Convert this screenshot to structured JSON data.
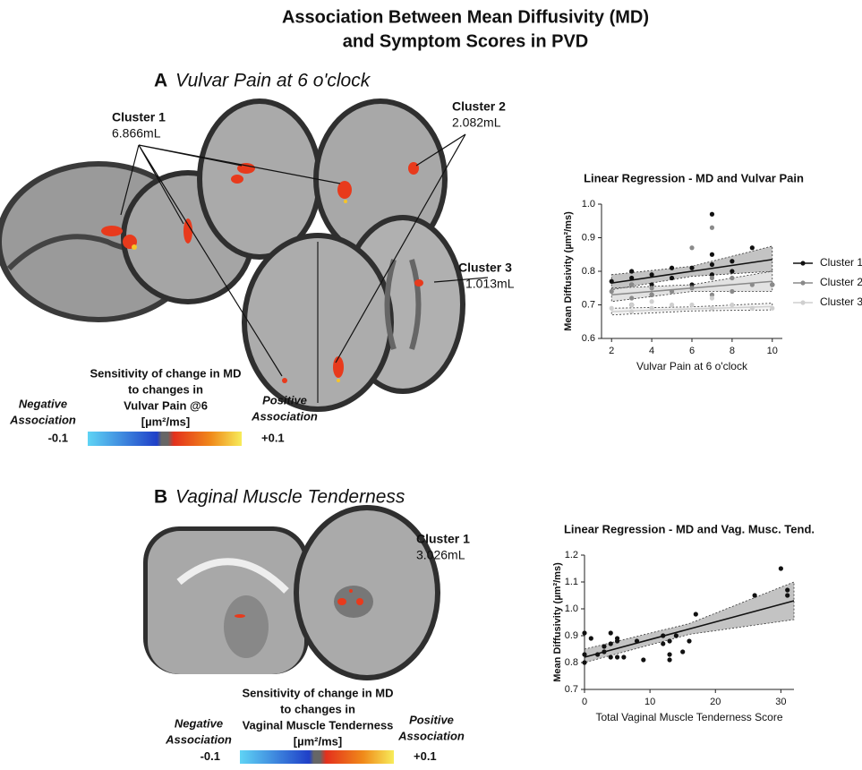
{
  "title": [
    "Association Between Mean Diffusivity (MD)",
    "and Symptom Scores in PVD"
  ],
  "panels": [
    {
      "letter": "A",
      "name": "Vulvar Pain at 6 o'clock",
      "clusters": [
        {
          "label": "Cluster 1",
          "volume": "6.866mL"
        },
        {
          "label": "Cluster 2",
          "volume": "2.082mL"
        },
        {
          "label": "Cluster 3",
          "volume": "1.013mL"
        }
      ],
      "colorbar": {
        "title": [
          "Sensitivity of change in MD",
          "to changes in",
          "Vulvar Pain @6",
          "[µm²/ms]"
        ],
        "negative": [
          "Negative",
          "Association"
        ],
        "positive": [
          "Positive",
          "Association"
        ],
        "min": -0.1,
        "max": {
          "value": 0.1,
          "label": "+0.1"
        }
      }
    },
    {
      "letter": "B",
      "name": "Vaginal Muscle Tenderness",
      "clusters": [
        {
          "label": "Cluster 1",
          "volume": "3.026mL"
        }
      ],
      "colorbar": {
        "title": [
          "Sensitivity of change in MD",
          "to changes in",
          "Vaginal Muscle Tenderness",
          "[µm²/ms]"
        ],
        "negative": [
          "Negative",
          "Association"
        ],
        "positive": [
          "Positive",
          "Association"
        ],
        "min": -0.1,
        "max": {
          "value": 0.1,
          "label": "+0.1"
        }
      }
    }
  ],
  "chart_data": [
    {
      "type": "scatter",
      "title": "Linear Regression -  MD and  Vulvar Pain",
      "x_label": "Vulvar Pain at 6 o'clock",
      "y_label": "Mean Diffusivity (µm²/ms)",
      "xlim": [
        1.5,
        10.5
      ],
      "xticks": [
        2,
        4,
        6,
        8,
        10
      ],
      "ylim": [
        0.6,
        1.0
      ],
      "yticks": [
        0.6,
        0.7,
        0.8,
        0.9,
        {
          "value": 1.0,
          "label": "1.0"
        }
      ],
      "legend": "right",
      "series": [
        {
          "name": "Cluster 1",
          "color": "#111111",
          "x": [
            2,
            3,
            3,
            3,
            3,
            4,
            4,
            4,
            5,
            5,
            6,
            6,
            7,
            7,
            7,
            7,
            8,
            8,
            9,
            10
          ],
          "values": [
            0.77,
            0.8,
            0.78,
            0.76,
            0.7,
            0.79,
            0.76,
            0.73,
            0.81,
            0.78,
            0.81,
            0.76,
            0.97,
            0.85,
            0.82,
            0.79,
            0.83,
            0.8,
            0.87,
            0.76
          ],
          "trend": {
            "x": [
              2,
              6,
              10
            ],
            "y": [
              0.765,
              0.8,
              0.835
            ],
            "lower": [
              0.745,
              0.785,
              0.8
            ],
            "upper": [
              0.79,
              0.815,
              0.875
            ]
          }
        },
        {
          "name": "Cluster 2",
          "color": "#8a8a8a",
          "x": [
            2,
            3,
            3,
            4,
            4,
            5,
            6,
            6,
            7,
            7,
            7,
            8,
            8,
            9,
            10
          ],
          "values": [
            0.74,
            0.76,
            0.72,
            0.75,
            0.73,
            0.74,
            0.87,
            0.75,
            0.93,
            0.78,
            0.73,
            0.78,
            0.74,
            0.76,
            0.76
          ],
          "trend": {
            "x": [
              2,
              6,
              10
            ],
            "y": [
              0.73,
              0.75,
              0.77
            ],
            "lower": [
              0.71,
              0.74,
              0.74
            ],
            "upper": [
              0.75,
              0.76,
              0.8
            ]
          }
        },
        {
          "name": "Cluster 3",
          "color": "#cfcfcf",
          "x": [
            2,
            3,
            3,
            4,
            4,
            5,
            6,
            7,
            7,
            8,
            9,
            10
          ],
          "values": [
            0.69,
            0.7,
            0.68,
            0.71,
            0.69,
            0.7,
            0.7,
            0.72,
            0.69,
            0.7,
            0.69,
            0.69
          ],
          "trend": {
            "x": [
              2,
              6,
              10
            ],
            "y": [
              0.68,
              0.688,
              0.695
            ],
            "lower": [
              0.67,
              0.682,
              0.685
            ],
            "upper": [
              0.69,
              0.694,
              0.705
            ]
          }
        }
      ]
    },
    {
      "type": "scatter",
      "title": "Linear Regression - MD and Vag. Musc. Tend.",
      "x_label": "Total Vaginal Muscle Tenderness Score",
      "y_label": "Mean Diffusivity (µm²/ms)",
      "xlim": [
        0,
        32
      ],
      "xticks": [
        0,
        10,
        20,
        30
      ],
      "ylim": [
        0.7,
        1.2
      ],
      "yticks": [
        0.7,
        0.8,
        0.9,
        {
          "value": 1.0,
          "label": "1.0"
        },
        1.1,
        1.2
      ],
      "series": [
        {
          "color": "#111111",
          "x": [
            0,
            0,
            0,
            1,
            2,
            3,
            3,
            4,
            4,
            4,
            5,
            5,
            5,
            6,
            8,
            9,
            12,
            12,
            13,
            13,
            13,
            14,
            15,
            16,
            17,
            26,
            30,
            31,
            31
          ],
          "values": [
            0.8,
            0.83,
            0.91,
            0.89,
            0.83,
            0.84,
            0.86,
            0.87,
            0.82,
            0.91,
            0.89,
            0.88,
            0.82,
            0.82,
            0.88,
            0.81,
            0.87,
            0.9,
            0.81,
            0.83,
            0.88,
            0.9,
            0.84,
            0.88,
            0.98,
            1.05,
            1.15,
            1.07,
            1.05
          ],
          "trend": {
            "x": [
              0,
              16,
              32
            ],
            "y": [
              0.82,
              0.925,
              1.03
            ],
            "lower": [
              0.8,
              0.905,
              0.96
            ],
            "upper": [
              0.85,
              0.945,
              1.1
            ]
          }
        }
      ]
    }
  ]
}
